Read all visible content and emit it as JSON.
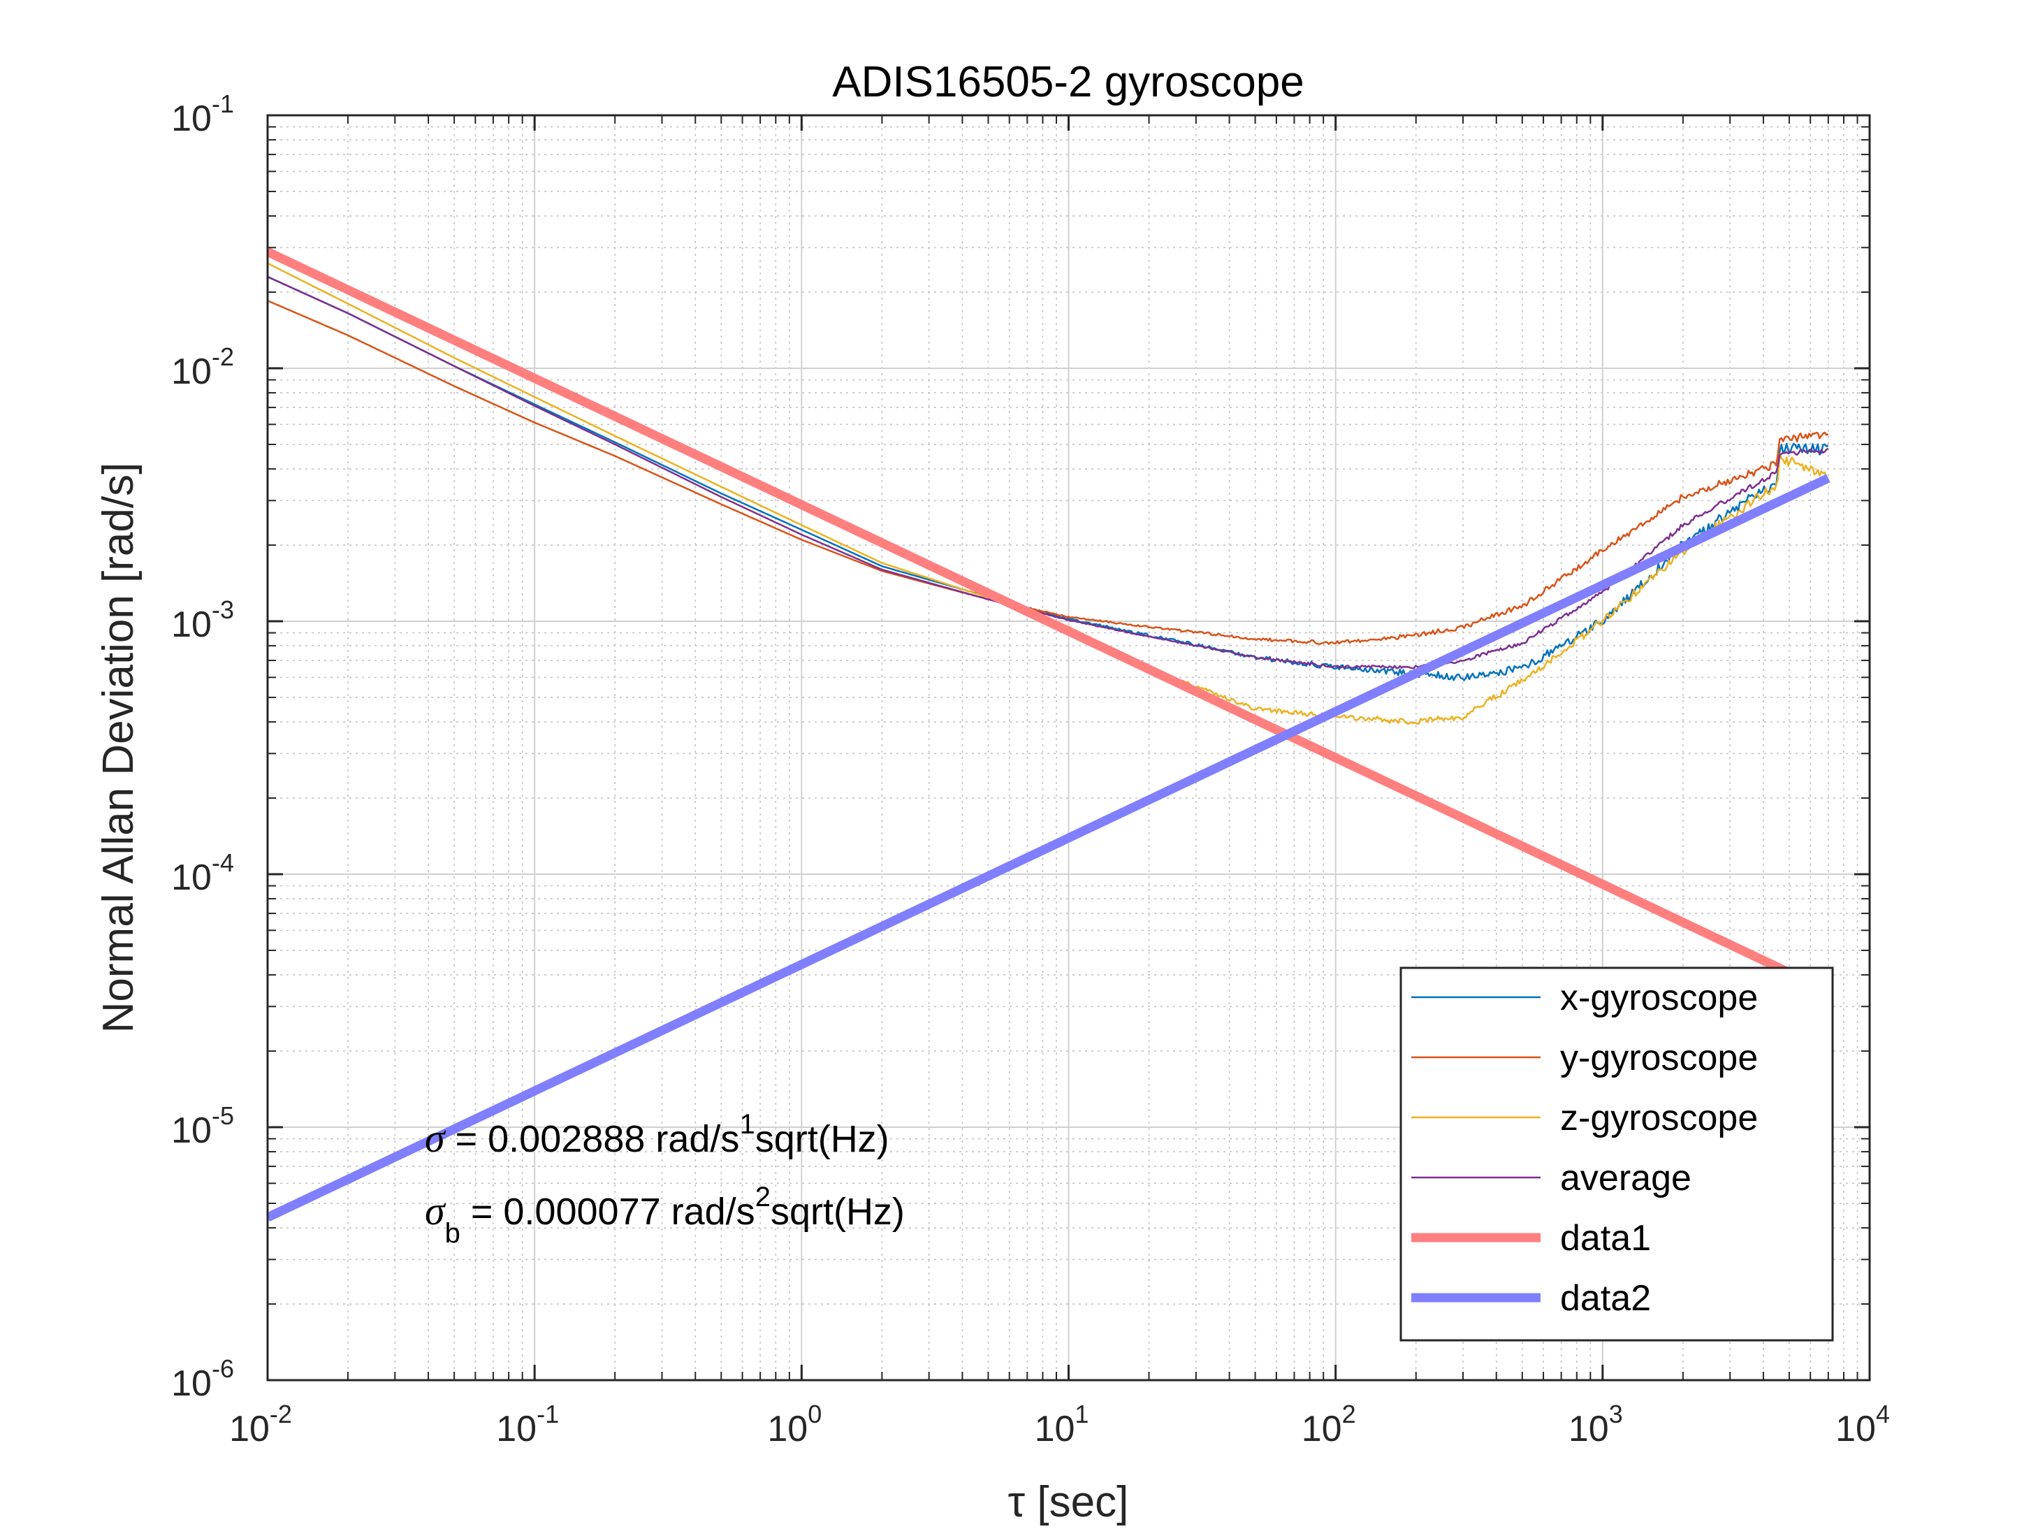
{
  "chart_data": {
    "type": "line",
    "title": "ADIS16505-2 gyroscope",
    "xlabel": "τ [sec]",
    "ylabel": "Normal Allan Deviation [rad/s]",
    "x_scale": "log",
    "y_scale": "log",
    "xlim": [
      0.01,
      10000
    ],
    "ylim": [
      1e-06,
      0.1
    ],
    "grid": true,
    "legend_position": "bottom-right",
    "x_ticks": [
      {
        "base": "10",
        "exp": "-2",
        "value": 0.01
      },
      {
        "base": "10",
        "exp": "-1",
        "value": 0.1
      },
      {
        "base": "10",
        "exp": "0",
        "value": 1
      },
      {
        "base": "10",
        "exp": "1",
        "value": 10
      },
      {
        "base": "10",
        "exp": "2",
        "value": 100
      },
      {
        "base": "10",
        "exp": "3",
        "value": 1000
      },
      {
        "base": "10",
        "exp": "4",
        "value": 10000
      }
    ],
    "y_ticks": [
      {
        "base": "10",
        "exp": "-6",
        "value": 1e-06
      },
      {
        "base": "10",
        "exp": "-5",
        "value": 1e-05
      },
      {
        "base": "10",
        "exp": "-4",
        "value": 0.0001
      },
      {
        "base": "10",
        "exp": "-3",
        "value": 0.001
      },
      {
        "base": "10",
        "exp": "-2",
        "value": 0.01
      },
      {
        "base": "10",
        "exp": "-1",
        "value": 0.1
      }
    ],
    "annotations": [
      {
        "symbol": "σ",
        "subscript": "",
        "text_before_sup": " = 0.002888 rad/s",
        "sup": "1",
        "text_after_sup": "sqrt(Hz)"
      },
      {
        "symbol": "σ",
        "subscript": "b",
        "text_before_sup": " = 0.000077 rad/s",
        "sup": "2",
        "text_after_sup": "sqrt(Hz)"
      }
    ],
    "series": [
      {
        "name": "x-gyroscope",
        "color": "#0072BD",
        "line_width": 2.5,
        "noise": 0.045,
        "x": [
          0.01,
          0.02,
          0.05,
          0.1,
          0.2,
          0.5,
          1,
          2,
          5,
          10,
          20,
          50,
          100,
          200,
          300,
          500,
          1000,
          2000,
          4500,
          4600,
          7000
        ],
        "y": [
          0.023,
          0.0165,
          0.0102,
          0.0072,
          0.0051,
          0.0032,
          0.0023,
          0.00165,
          0.00125,
          0.00102,
          0.00088,
          0.00072,
          0.00066,
          0.00062,
          0.0006,
          0.00065,
          0.001,
          0.002,
          0.0036,
          0.0048,
          0.0048
        ]
      },
      {
        "name": "y-gyroscope",
        "color": "#D95319",
        "line_width": 2.5,
        "noise": 0.03,
        "x": [
          0.01,
          0.02,
          0.05,
          0.1,
          0.2,
          0.5,
          1,
          2,
          5,
          10,
          20,
          50,
          100,
          200,
          300,
          500,
          1000,
          2000,
          4500,
          4600,
          7000
        ],
        "y": [
          0.0185,
          0.0135,
          0.0085,
          0.0061,
          0.0045,
          0.0029,
          0.0021,
          0.00158,
          0.00122,
          0.00104,
          0.00095,
          0.00085,
          0.00082,
          0.00088,
          0.00095,
          0.00115,
          0.0019,
          0.0031,
          0.0042,
          0.0052,
          0.0055
        ]
      },
      {
        "name": "z-gyroscope",
        "color": "#EDB120",
        "line_width": 2.5,
        "noise": 0.04,
        "x": [
          0.01,
          0.02,
          0.05,
          0.1,
          0.2,
          0.5,
          1,
          2,
          5,
          10,
          20,
          50,
          100,
          200,
          300,
          500,
          1000,
          2000,
          4500,
          4600,
          7000
        ],
        "y": [
          0.026,
          0.018,
          0.011,
          0.0077,
          0.0054,
          0.0034,
          0.0024,
          0.0017,
          0.00124,
          0.00095,
          0.00065,
          0.00045,
          0.00042,
          0.0004,
          0.00042,
          0.00058,
          0.001,
          0.0019,
          0.0035,
          0.0044,
          0.0038
        ]
      },
      {
        "name": "average",
        "color": "#7E2F8E",
        "line_width": 2.5,
        "noise": 0.02,
        "x": [
          0.01,
          0.02,
          0.05,
          0.1,
          0.2,
          0.5,
          1,
          2,
          5,
          10,
          20,
          50,
          100,
          200,
          300,
          500,
          1000,
          2000,
          4500,
          4600,
          7000
        ],
        "y": [
          0.023,
          0.0165,
          0.0102,
          0.0071,
          0.005,
          0.0031,
          0.0022,
          0.0016,
          0.00122,
          0.00101,
          0.00087,
          0.00072,
          0.00066,
          0.00066,
          0.0007,
          0.00082,
          0.0013,
          0.0024,
          0.0039,
          0.0046,
          0.0047
        ]
      },
      {
        "name": "data1",
        "color": "#FF7F7F",
        "line_width": 13,
        "noise": 0,
        "x": [
          0.01,
          7000
        ],
        "y": [
          0.02888,
          3.45e-05
        ]
      },
      {
        "name": "data2",
        "color": "#7F7FFF",
        "line_width": 13,
        "noise": 0,
        "x": [
          0.01,
          7000
        ],
        "y": [
          4.4e-06,
          0.00368
        ]
      }
    ]
  }
}
